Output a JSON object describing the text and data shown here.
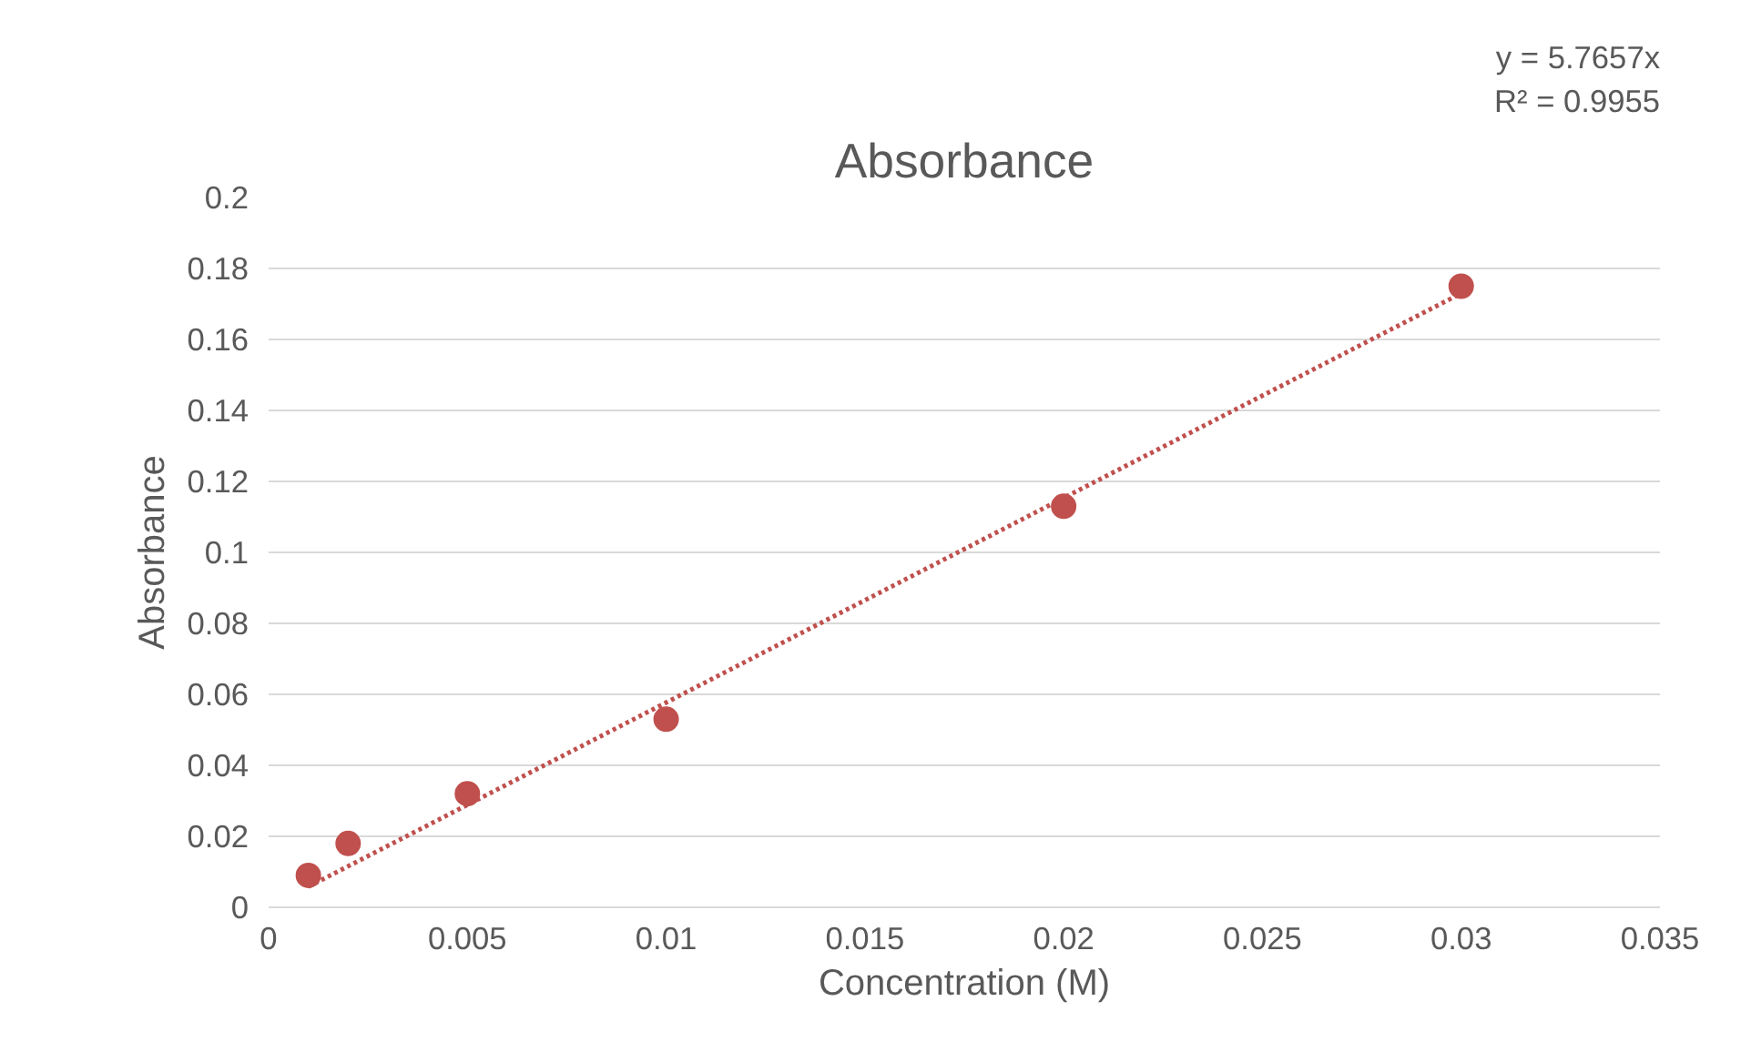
{
  "chart_data": {
    "type": "scatter",
    "title": "Absorbance",
    "xlabel": "Concentration (M)",
    "ylabel": "Absorbance",
    "annotations": [
      "y = 5.7657x",
      "R² = 0.9955"
    ],
    "xlim": [
      0,
      0.035
    ],
    "xticks": [
      0,
      0.005,
      0.01,
      0.015,
      0.02,
      0.025,
      0.03,
      0.035
    ],
    "ylim": [
      0,
      0.2
    ],
    "yticks": [
      0,
      0.02,
      0.04,
      0.06,
      0.08,
      0.1,
      0.12,
      0.14,
      0.16,
      0.18,
      0.2
    ],
    "grid": "y",
    "marker": "circle",
    "series": [
      {
        "color": "#c0504d",
        "x": [
          0.001,
          0.002,
          0.005,
          0.01,
          0.02,
          0.03
        ],
        "values": [
          0.009,
          0.018,
          0.032,
          0.053,
          0.113,
          0.175
        ]
      },
      {
        "type": "line",
        "color": "#c0504d",
        "line_style": "dotted",
        "marker": "none",
        "x": [
          0.001,
          0.03
        ],
        "values": [
          0.0058,
          0.173
        ]
      }
    ]
  }
}
